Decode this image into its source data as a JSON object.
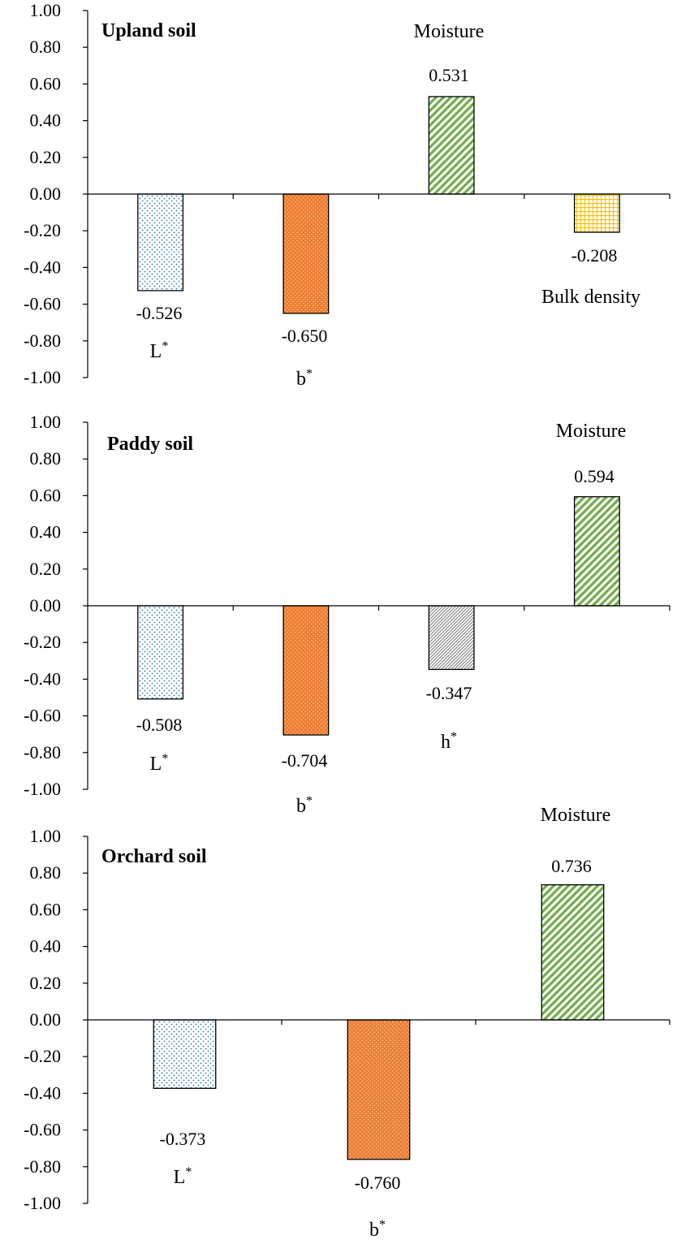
{
  "chart_data": [
    {
      "type": "bar",
      "title": "Upland soil",
      "ylim": [
        -1.0,
        1.0
      ],
      "yticks": [
        "1.00",
        "0.80",
        "0.60",
        "0.40",
        "0.20",
        "0.00",
        "-0.20",
        "-0.40",
        "-0.60",
        "-0.80",
        "-1.00"
      ],
      "categories": [
        "L*",
        "b*",
        "Moisture",
        "Bulk density"
      ],
      "values": [
        -0.526,
        -0.65,
        0.531,
        -0.208
      ],
      "value_labels": [
        "-0.526",
        "-0.650",
        "0.531",
        "-0.208"
      ],
      "patterns": [
        "dots-blue",
        "dots-orange",
        "diag-green",
        "grid-yellow"
      ]
    },
    {
      "type": "bar",
      "title": "Paddy soil",
      "ylim": [
        -1.0,
        1.0
      ],
      "yticks": [
        "1.00",
        "0.80",
        "0.60",
        "0.40",
        "0.20",
        "0.00",
        "-0.20",
        "-0.40",
        "-0.60",
        "-0.80",
        "-1.00"
      ],
      "categories": [
        "L*",
        "b*",
        "h*",
        "Moisture"
      ],
      "values": [
        -0.508,
        -0.704,
        -0.347,
        0.594
      ],
      "value_labels": [
        "-0.508",
        "-0.704",
        "-0.347",
        "0.594"
      ],
      "patterns": [
        "dots-blue",
        "dots-orange",
        "diag-gray",
        "diag-green"
      ]
    },
    {
      "type": "bar",
      "title": "Orchard soil",
      "ylim": [
        -1.0,
        1.0
      ],
      "yticks": [
        "1.00",
        "0.80",
        "0.60",
        "0.40",
        "0.20",
        "0.00",
        "-0.20",
        "-0.40",
        "-0.60",
        "-0.80",
        "-1.00"
      ],
      "categories": [
        "L*",
        "b*",
        "Moisture"
      ],
      "values": [
        -0.373,
        -0.76,
        0.736
      ],
      "value_labels": [
        "-0.373",
        "-0.760",
        "0.736"
      ],
      "patterns": [
        "dots-blue",
        "dots-orange",
        "diag-green"
      ]
    }
  ],
  "colors": {
    "blue": "#2e75b6",
    "orange": "#ed7d31",
    "green": "#70ad47",
    "gray": "#7f7f7f",
    "yellow": "#ffc000"
  }
}
